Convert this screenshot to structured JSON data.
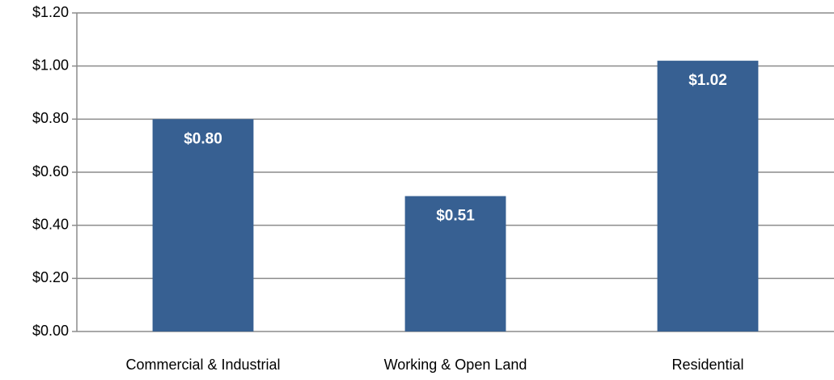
{
  "chart_data": {
    "type": "bar",
    "categories": [
      "Commercial & Industrial",
      "Working & Open Land",
      "Residential"
    ],
    "values": [
      0.8,
      0.51,
      1.02
    ],
    "value_labels": [
      "$0.80",
      "$0.51",
      "$1.02"
    ],
    "color": "#376092",
    "ylim": [
      0,
      1.2
    ],
    "yticks": [
      {
        "value": 0,
        "label": "$0.00"
      },
      {
        "value": 0.2,
        "label": "$0.20"
      },
      {
        "value": 0.4,
        "label": "$0.40"
      },
      {
        "value": 0.6,
        "label": "$0.60"
      },
      {
        "value": 0.8,
        "label": "$0.80"
      },
      {
        "value": 1.0,
        "label": "$1.00"
      },
      {
        "value": 1.2,
        "label": "$1.20"
      }
    ],
    "grid": true
  }
}
